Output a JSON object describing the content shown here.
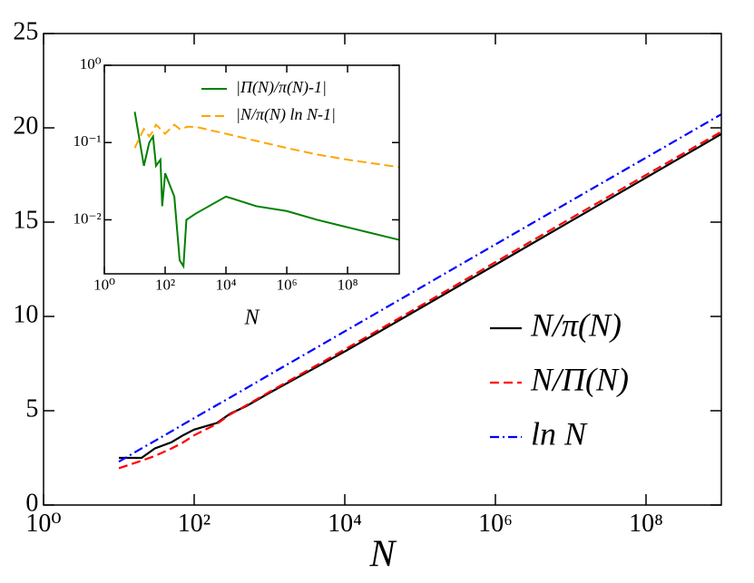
{
  "chart_data": [
    {
      "type": "line",
      "x_label": "N",
      "xscale": "log",
      "yscale": "linear",
      "xlim": [
        1,
        1000000000
      ],
      "ylim": [
        0,
        25
      ],
      "xticks": [
        {
          "value": 1,
          "label": "10⁰"
        },
        {
          "value": 100,
          "label": "10²"
        },
        {
          "value": 10000,
          "label": "10⁴"
        },
        {
          "value": 1000000,
          "label": "10⁶"
        },
        {
          "value": 100000000,
          "label": "10⁸"
        }
      ],
      "yticks": [
        0,
        5,
        10,
        15,
        20,
        25
      ],
      "legend": "lower right",
      "x": [
        10,
        20,
        30,
        50,
        70,
        100,
        200,
        300,
        500,
        1000,
        10000,
        100000,
        1000000,
        10000000,
        100000000,
        1000000000
      ],
      "series": [
        {
          "name": "N/π(N)",
          "color": "#000000",
          "dash": "solid",
          "values": [
            2.5,
            2.5,
            3.0,
            3.33,
            3.68,
            4.0,
            4.35,
            4.84,
            5.26,
            5.95,
            8.14,
            10.43,
            12.74,
            15.05,
            17.36,
            19.67
          ]
        },
        {
          "name": "N/Π(N)",
          "color": "#ff0000",
          "dash": "dashed",
          "values": [
            1.95,
            2.35,
            2.6,
            3.0,
            3.3,
            3.7,
            4.3,
            4.8,
            5.3,
            6.0,
            8.25,
            10.55,
            12.88,
            15.2,
            17.5,
            19.8
          ]
        },
        {
          "name": "ln N",
          "color": "#0000ff",
          "dash": "dashdot",
          "values": [
            2.3,
            3.0,
            3.4,
            3.91,
            4.25,
            4.61,
            5.3,
            5.7,
            6.21,
            6.91,
            9.21,
            11.51,
            13.82,
            16.12,
            18.42,
            20.72
          ]
        }
      ]
    },
    {
      "type": "line",
      "x_label": "N",
      "xscale": "log",
      "yscale": "log",
      "xlim": [
        1,
        5000000000
      ],
      "ylim": [
        0.002,
        1
      ],
      "xticks": [
        {
          "value": 1,
          "label": "10⁰"
        },
        {
          "value": 100,
          "label": "10²"
        },
        {
          "value": 10000,
          "label": "10⁴"
        },
        {
          "value": 1000000,
          "label": "10⁶"
        },
        {
          "value": 100000000,
          "label": "10⁸"
        }
      ],
      "yticks": [
        {
          "value": 1,
          "label": "10⁰"
        },
        {
          "value": 0.1,
          "label": "10⁻¹"
        },
        {
          "value": 0.01,
          "label": "10⁻²"
        }
      ],
      "legend": "upper right",
      "x": [
        10,
        20,
        30,
        40,
        50,
        70,
        80,
        100,
        200,
        300,
        400,
        500,
        1000,
        10000,
        100000,
        1000000,
        10000000,
        100000000,
        5000000000
      ],
      "series": [
        {
          "name": "|Π(N)/π(N)-1|",
          "color": "#008000",
          "dash": "solid",
          "values": [
            0.25,
            0.05,
            0.1,
            0.12,
            0.05,
            0.06,
            0.015,
            0.04,
            0.02,
            0.003,
            0.0025,
            0.01,
            0.012,
            0.02,
            0.015,
            0.013,
            0.01,
            0.008,
            0.0055
          ]
        },
        {
          "name": "|N/π(N) ln N-1|",
          "color": "#ffa500",
          "dash": "dashed",
          "values": [
            0.085,
            0.15,
            0.12,
            0.14,
            0.17,
            0.15,
            0.14,
            0.13,
            0.17,
            0.15,
            0.15,
            0.16,
            0.16,
            0.13,
            0.105,
            0.085,
            0.07,
            0.06,
            0.048
          ]
        }
      ]
    }
  ]
}
